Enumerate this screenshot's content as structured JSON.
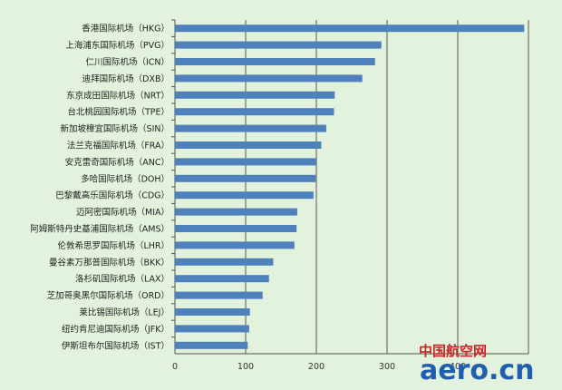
{
  "chart_data": {
    "type": "bar",
    "orientation": "horizontal",
    "categories": [
      "香港国际机场（HKG）",
      "上海浦东国际机场（PVG）",
      "仁川国际机场（ICN）",
      "迪拜国际机场（DXB）",
      "东京成田国际机场（NRT）",
      "台北桃园国际机场（TPE）",
      "新加坡樟宜国际机场（SIN）",
      "法兰克福国际机场（FRA）",
      "安克雷奇国际机场（ANC）",
      "多哈国际机场（DOH）",
      "巴黎戴高乐国际机场（CDG）",
      "迈阿密国际机场（MIA）",
      "阿姆斯特丹史基浦国际机场（AMS）",
      "伦敦希思罗国际机场（LHR）",
      "曼谷素万那普国际机场（BKK）",
      "洛杉矶国际机场（LAX）",
      "芝加哥奥黑尔国际机场（ORD）",
      "莱比锡国际机场（LEJ）",
      "纽约肯尼迪国际机场（JFK）",
      "伊斯坦布尔国际机场（IST）"
    ],
    "values": [
      494,
      292,
      283,
      265,
      226,
      225,
      214,
      207,
      200,
      199,
      196,
      173,
      172,
      169,
      139,
      133,
      124,
      106,
      105,
      103
    ],
    "xlim": [
      0,
      500
    ],
    "xticks": [
      0,
      100,
      200,
      300,
      400
    ],
    "grid": true,
    "bar_color": "#4f81bd",
    "title": "",
    "xlabel": "",
    "ylabel": ""
  },
  "watermark": {
    "cn_text": "中国航空网",
    "en_text": "aero.cn",
    "cn_color": "#c62828",
    "en_color": "#1f5fae"
  }
}
